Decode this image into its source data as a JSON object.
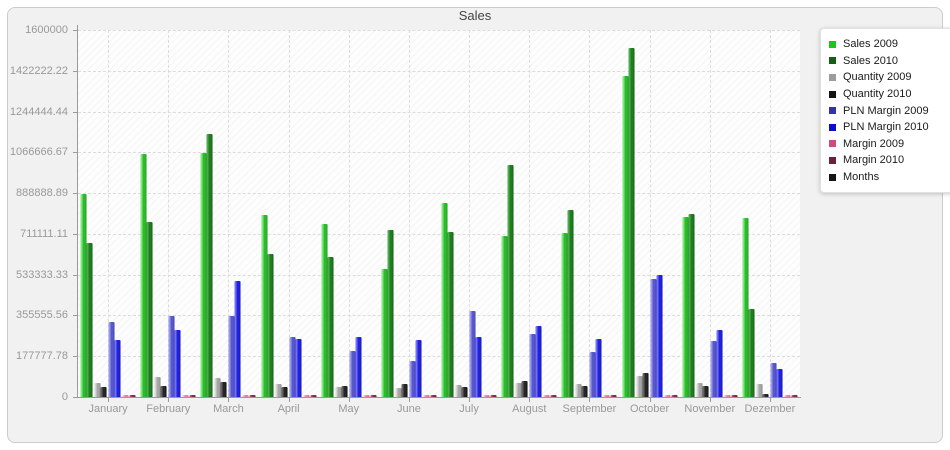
{
  "title": "Sales",
  "chart_data": {
    "type": "bar",
    "title": "Sales",
    "xlabel": "",
    "ylabel": "",
    "ylim": [
      0,
      1600000
    ],
    "grid": "dashed horizontal at each y tick and dashed vertical at each month center",
    "legend_position": "right",
    "plot_background": "white with light diagonal hatch",
    "y_tick_labels": [
      "1600000",
      "1422222.22",
      "1244444.44",
      "1066666.67",
      "888888.89",
      "711111.11",
      "533333.33",
      "355555.56",
      "177777.78",
      "0"
    ],
    "categories": [
      "January",
      "February",
      "March",
      "April",
      "May",
      "June",
      "July",
      "August",
      "September",
      "October",
      "November",
      "Dezember"
    ],
    "series": [
      {
        "name": "Sales 2009",
        "values": [
          885000,
          1060000,
          1065000,
          795000,
          755000,
          560000,
          845000,
          700000,
          715000,
          1400000,
          785000,
          780000
        ],
        "color": "#2dbb2d",
        "color_light": "#7de87d",
        "color_dark": "#189318",
        "legend_color": "#1ec41e"
      },
      {
        "name": "Sales 2010",
        "values": [
          670000,
          765000,
          1145000,
          625000,
          610000,
          730000,
          720000,
          1010000,
          815000,
          1520000,
          800000,
          385000
        ],
        "color": "#1e7d1e",
        "color_light": "#4faa4f",
        "color_dark": "#0f4f0f",
        "legend_color": "#145f14"
      },
      {
        "name": "Quantity 2009",
        "values": [
          60000,
          86000,
          82000,
          55000,
          42000,
          38000,
          52000,
          60000,
          57000,
          92000,
          62000,
          58000
        ],
        "color": "#a6a6a6",
        "color_light": "#d6d6d6",
        "color_dark": "#7e7e7e",
        "legend_color": "#9c9c9c"
      },
      {
        "name": "Quantity 2010",
        "values": [
          45000,
          50000,
          67000,
          45000,
          48000,
          58000,
          45000,
          70000,
          48000,
          103000,
          48000,
          15000
        ],
        "color": "#262626",
        "color_light": "#636363",
        "color_dark": "#000000",
        "legend_color": "#141414"
      },
      {
        "name": "PLN Margin 2009",
        "values": [
          325000,
          355000,
          355000,
          260000,
          200000,
          155000,
          375000,
          275000,
          195000,
          515000,
          245000,
          150000
        ],
        "color": "#5757cf",
        "color_light": "#9a9ae6",
        "color_dark": "#3a3aa0",
        "legend_color": "#3434a8"
      },
      {
        "name": "PLN Margin 2010",
        "values": [
          248000,
          290000,
          505000,
          255000,
          260000,
          250000,
          260000,
          310000,
          252000,
          530000,
          290000,
          120000
        ],
        "color": "#2222dd",
        "color_light": "#7070f2",
        "color_dark": "#0f0fa8",
        "legend_color": "#0d0dcc"
      },
      {
        "name": "Margin 2009",
        "values": [
          8000,
          8000,
          8000,
          8000,
          8000,
          8000,
          8000,
          8000,
          8000,
          8000,
          8000,
          8000
        ],
        "color": "#ee7fa6",
        "color_light": "#ffb3c9",
        "color_dark": "#d6608c",
        "legend_color": "#cf4b7e"
      },
      {
        "name": "Margin 2010",
        "values": [
          8000,
          8000,
          8000,
          8000,
          8000,
          8000,
          8000,
          8000,
          8000,
          8000,
          8000,
          8000
        ],
        "color": "#8a2850",
        "color_light": "#b05575",
        "color_dark": "#601530",
        "legend_color": "#6e1f3c"
      },
      {
        "name": "Months",
        "values": [
          0,
          0,
          0,
          0,
          0,
          0,
          0,
          0,
          0,
          0,
          0,
          0
        ],
        "color": "#111111",
        "color_light": "#444444",
        "color_dark": "#000000",
        "legend_color": "#141414"
      }
    ]
  }
}
